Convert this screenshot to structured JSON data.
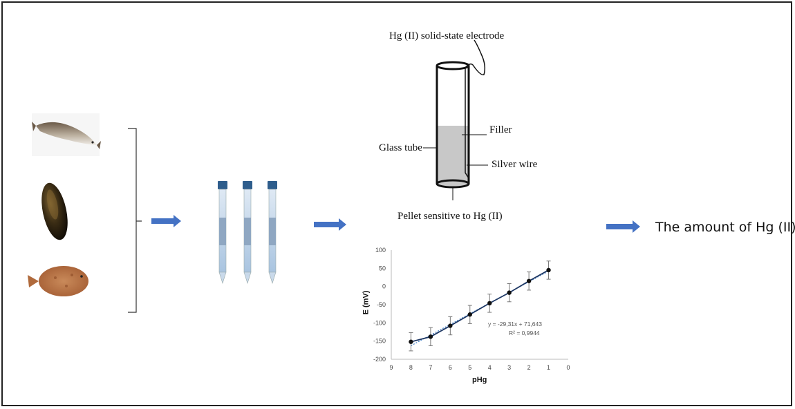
{
  "electrode": {
    "title": "Hg (II) solid-state electrode",
    "filler_label": "Filler",
    "glass_tube_label": "Glass tube",
    "silver_wire_label": "Silver wire",
    "pellet_label": "Pellet sensitive to Hg (II)"
  },
  "result_text": "The amount of Hg (II)",
  "samples": [
    "fish-icon",
    "mussel-icon",
    "flatfish-icon"
  ],
  "tubes_count": 3,
  "colors": {
    "arrow": "#4472C4",
    "tube_cap": "#2E5D8C",
    "filler": "#c8c8c8",
    "line": "#1f3864"
  },
  "chart_data": {
    "type": "line",
    "xlabel": "pHg",
    "ylabel": "E (mV)",
    "xlim": [
      9,
      0
    ],
    "ylim": [
      -200,
      100
    ],
    "x_ticks": [
      9,
      8,
      7,
      6,
      5,
      4,
      3,
      2,
      1,
      0
    ],
    "y_ticks": [
      100,
      50,
      0,
      -50,
      -100,
      -150,
      -200
    ],
    "series": [
      {
        "x": [
          8,
          7,
          6,
          5,
          4,
          3,
          2,
          1
        ],
        "values": [
          -152,
          -138,
          -108,
          -77,
          -46,
          -17,
          15,
          45
        ],
        "error": [
          25,
          25,
          25,
          25,
          25,
          25,
          25,
          25
        ]
      }
    ],
    "trendline": {
      "equation": "y = -29,31x + 71,643",
      "r2": "R² = 0,9944"
    },
    "grid": false
  }
}
